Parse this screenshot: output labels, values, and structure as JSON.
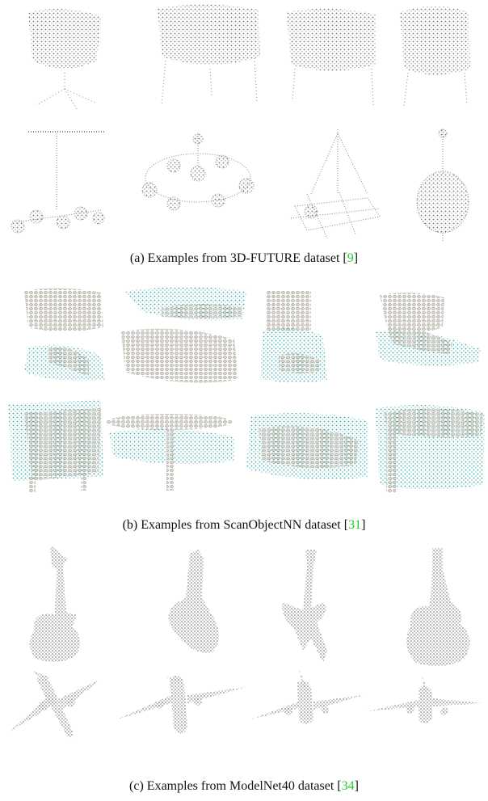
{
  "captions": [
    {
      "text": "(a) Examples from 3D-FUTURE dataset [",
      "ref": "9",
      "end": "]"
    },
    {
      "text": "(b) Examples from ScanObjectNN dataset [",
      "ref": "31",
      "end": "]"
    },
    {
      "text": "(c) Examples from ModelNet40 dataset [",
      "ref": "34",
      "end": "]"
    }
  ]
}
